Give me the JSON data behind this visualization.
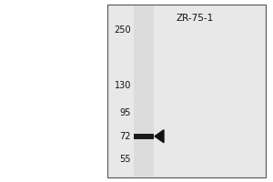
{
  "title": "ZR-75-1",
  "mw_markers": [
    250,
    130,
    95,
    72,
    55
  ],
  "band_at": 72,
  "outer_bg": "#ffffff",
  "panel_bg": "#e8e8e8",
  "lane_color": "#d0cece",
  "border_color": "#555555",
  "text_color": "#111111",
  "band_color": "#1a1a1a",
  "arrow_color": "#111111",
  "title_fontsize": 7.5,
  "marker_fontsize": 7,
  "fig_width": 3.0,
  "fig_height": 2.0,
  "dpi": 100
}
